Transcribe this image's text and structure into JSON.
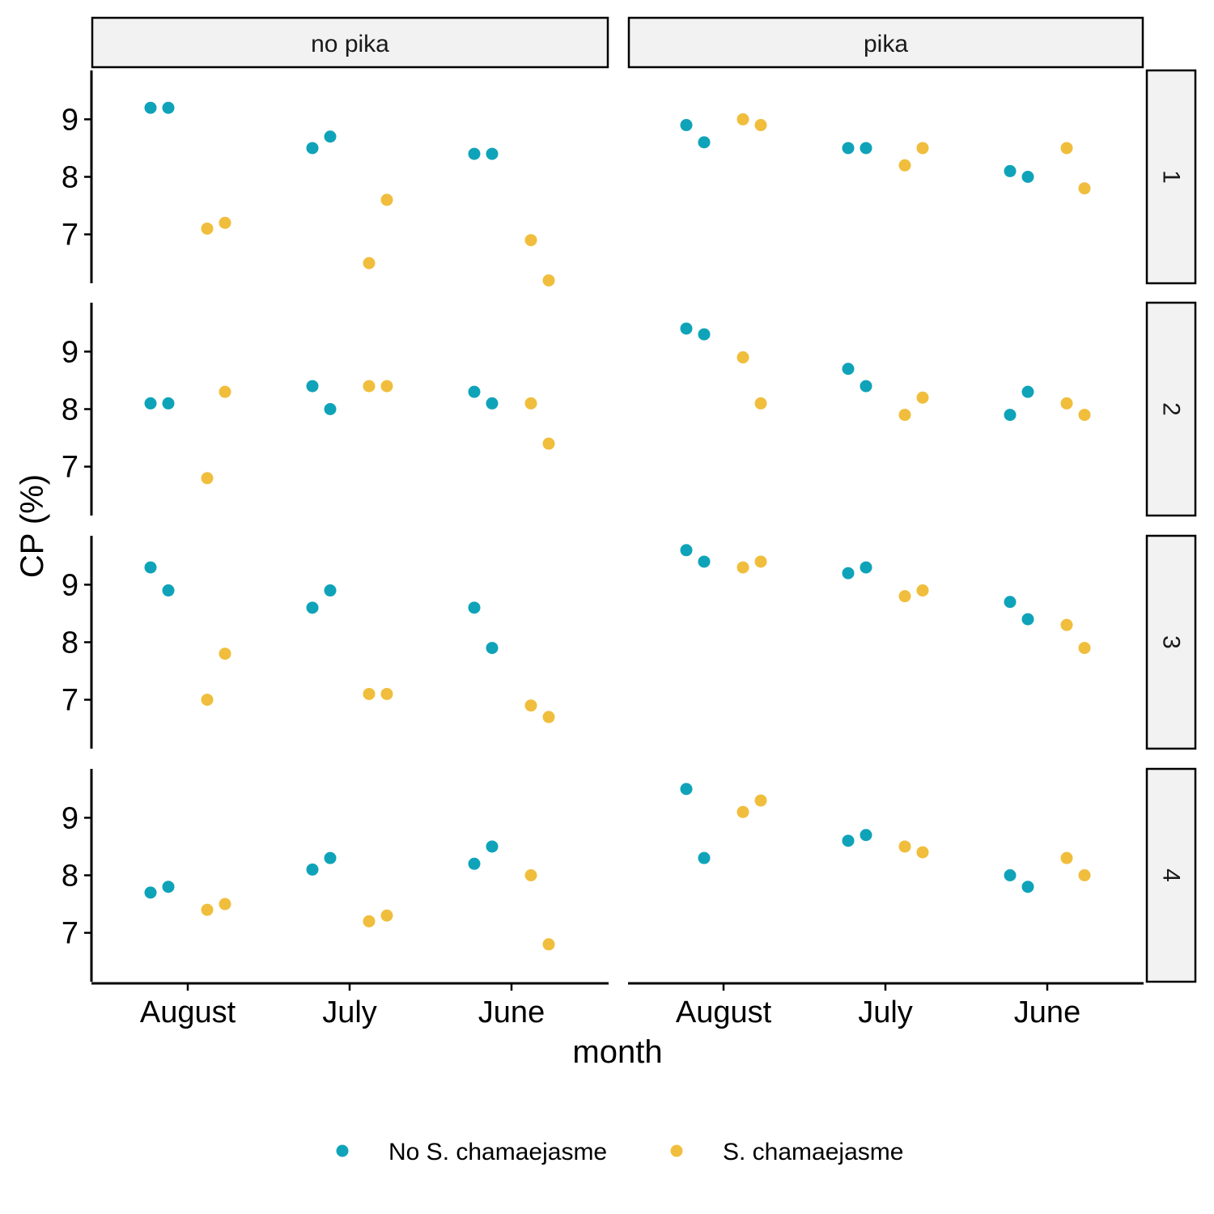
{
  "chart_data": {
    "type": "scatter",
    "xlabel": "month",
    "ylabel": "CP (%)",
    "categories": [
      "August",
      "July",
      "June"
    ],
    "yticks": [
      7,
      8,
      9
    ],
    "ylim": [
      6.15,
      9.85
    ],
    "facet_columns": [
      "no pika",
      "pika"
    ],
    "facet_rows": [
      "1",
      "2",
      "3",
      "4"
    ],
    "legend_position": "bottom",
    "grid": false,
    "series": [
      {
        "name": "No S. chamaejasme",
        "color": "#0fa3b9"
      },
      {
        "name": "S. chamaejasme",
        "color": "#f0be3c"
      }
    ],
    "points": [
      {
        "col": "no pika",
        "row": "1",
        "series": "No S. chamaejasme",
        "month": "August",
        "y": 9.2
      },
      {
        "col": "no pika",
        "row": "1",
        "series": "No S. chamaejasme",
        "month": "August",
        "y": 9.2
      },
      {
        "col": "no pika",
        "row": "1",
        "series": "No S. chamaejasme",
        "month": "July",
        "y": 8.5
      },
      {
        "col": "no pika",
        "row": "1",
        "series": "No S. chamaejasme",
        "month": "July",
        "y": 8.7
      },
      {
        "col": "no pika",
        "row": "1",
        "series": "No S. chamaejasme",
        "month": "June",
        "y": 8.4
      },
      {
        "col": "no pika",
        "row": "1",
        "series": "No S. chamaejasme",
        "month": "June",
        "y": 8.4
      },
      {
        "col": "no pika",
        "row": "1",
        "series": "S. chamaejasme",
        "month": "August",
        "y": 7.1
      },
      {
        "col": "no pika",
        "row": "1",
        "series": "S. chamaejasme",
        "month": "August",
        "y": 7.2
      },
      {
        "col": "no pika",
        "row": "1",
        "series": "S. chamaejasme",
        "month": "July",
        "y": 6.5
      },
      {
        "col": "no pika",
        "row": "1",
        "series": "S. chamaejasme",
        "month": "July",
        "y": 7.6
      },
      {
        "col": "no pika",
        "row": "1",
        "series": "S. chamaejasme",
        "month": "June",
        "y": 6.9
      },
      {
        "col": "no pika",
        "row": "1",
        "series": "S. chamaejasme",
        "month": "June",
        "y": 6.2
      },
      {
        "col": "pika",
        "row": "1",
        "series": "No S. chamaejasme",
        "month": "August",
        "y": 8.9
      },
      {
        "col": "pika",
        "row": "1",
        "series": "No S. chamaejasme",
        "month": "August",
        "y": 8.6
      },
      {
        "col": "pika",
        "row": "1",
        "series": "No S. chamaejasme",
        "month": "July",
        "y": 8.5
      },
      {
        "col": "pika",
        "row": "1",
        "series": "No S. chamaejasme",
        "month": "July",
        "y": 8.5
      },
      {
        "col": "pika",
        "row": "1",
        "series": "No S. chamaejasme",
        "month": "June",
        "y": 8.1
      },
      {
        "col": "pika",
        "row": "1",
        "series": "No S. chamaejasme",
        "month": "June",
        "y": 8.0
      },
      {
        "col": "pika",
        "row": "1",
        "series": "S. chamaejasme",
        "month": "August",
        "y": 9.0
      },
      {
        "col": "pika",
        "row": "1",
        "series": "S. chamaejasme",
        "month": "August",
        "y": 8.9
      },
      {
        "col": "pika",
        "row": "1",
        "series": "S. chamaejasme",
        "month": "July",
        "y": 8.2
      },
      {
        "col": "pika",
        "row": "1",
        "series": "S. chamaejasme",
        "month": "July",
        "y": 8.5
      },
      {
        "col": "pika",
        "row": "1",
        "series": "S. chamaejasme",
        "month": "June",
        "y": 8.5
      },
      {
        "col": "pika",
        "row": "1",
        "series": "S. chamaejasme",
        "month": "June",
        "y": 7.8
      },
      {
        "col": "no pika",
        "row": "2",
        "series": "No S. chamaejasme",
        "month": "August",
        "y": 8.1
      },
      {
        "col": "no pika",
        "row": "2",
        "series": "No S. chamaejasme",
        "month": "August",
        "y": 8.1
      },
      {
        "col": "no pika",
        "row": "2",
        "series": "No S. chamaejasme",
        "month": "July",
        "y": 8.4
      },
      {
        "col": "no pika",
        "row": "2",
        "series": "No S. chamaejasme",
        "month": "July",
        "y": 8.0
      },
      {
        "col": "no pika",
        "row": "2",
        "series": "No S. chamaejasme",
        "month": "June",
        "y": 8.3
      },
      {
        "col": "no pika",
        "row": "2",
        "series": "No S. chamaejasme",
        "month": "June",
        "y": 8.1
      },
      {
        "col": "no pika",
        "row": "2",
        "series": "S. chamaejasme",
        "month": "August",
        "y": 6.8
      },
      {
        "col": "no pika",
        "row": "2",
        "series": "S. chamaejasme",
        "month": "August",
        "y": 8.3
      },
      {
        "col": "no pika",
        "row": "2",
        "series": "S. chamaejasme",
        "month": "July",
        "y": 8.4
      },
      {
        "col": "no pika",
        "row": "2",
        "series": "S. chamaejasme",
        "month": "July",
        "y": 8.4
      },
      {
        "col": "no pika",
        "row": "2",
        "series": "S. chamaejasme",
        "month": "June",
        "y": 8.1
      },
      {
        "col": "no pika",
        "row": "2",
        "series": "S. chamaejasme",
        "month": "June",
        "y": 7.4
      },
      {
        "col": "pika",
        "row": "2",
        "series": "No S. chamaejasme",
        "month": "August",
        "y": 9.4
      },
      {
        "col": "pika",
        "row": "2",
        "series": "No S. chamaejasme",
        "month": "August",
        "y": 9.3
      },
      {
        "col": "pika",
        "row": "2",
        "series": "No S. chamaejasme",
        "month": "July",
        "y": 8.7
      },
      {
        "col": "pika",
        "row": "2",
        "series": "No S. chamaejasme",
        "month": "July",
        "y": 8.4
      },
      {
        "col": "pika",
        "row": "2",
        "series": "No S. chamaejasme",
        "month": "June",
        "y": 7.9
      },
      {
        "col": "pika",
        "row": "2",
        "series": "No S. chamaejasme",
        "month": "June",
        "y": 8.3
      },
      {
        "col": "pika",
        "row": "2",
        "series": "S. chamaejasme",
        "month": "August",
        "y": 8.9
      },
      {
        "col": "pika",
        "row": "2",
        "series": "S. chamaejasme",
        "month": "August",
        "y": 8.1
      },
      {
        "col": "pika",
        "row": "2",
        "series": "S. chamaejasme",
        "month": "July",
        "y": 7.9
      },
      {
        "col": "pika",
        "row": "2",
        "series": "S. chamaejasme",
        "month": "July",
        "y": 8.2
      },
      {
        "col": "pika",
        "row": "2",
        "series": "S. chamaejasme",
        "month": "June",
        "y": 8.1
      },
      {
        "col": "pika",
        "row": "2",
        "series": "S. chamaejasme",
        "month": "June",
        "y": 7.9
      },
      {
        "col": "no pika",
        "row": "3",
        "series": "No S. chamaejasme",
        "month": "August",
        "y": 9.3
      },
      {
        "col": "no pika",
        "row": "3",
        "series": "No S. chamaejasme",
        "month": "August",
        "y": 8.9
      },
      {
        "col": "no pika",
        "row": "3",
        "series": "No S. chamaejasme",
        "month": "July",
        "y": 8.6
      },
      {
        "col": "no pika",
        "row": "3",
        "series": "No S. chamaejasme",
        "month": "July",
        "y": 8.9
      },
      {
        "col": "no pika",
        "row": "3",
        "series": "No S. chamaejasme",
        "month": "June",
        "y": 8.6
      },
      {
        "col": "no pika",
        "row": "3",
        "series": "No S. chamaejasme",
        "month": "June",
        "y": 7.9
      },
      {
        "col": "no pika",
        "row": "3",
        "series": "S. chamaejasme",
        "month": "August",
        "y": 7.0
      },
      {
        "col": "no pika",
        "row": "3",
        "series": "S. chamaejasme",
        "month": "August",
        "y": 7.8
      },
      {
        "col": "no pika",
        "row": "3",
        "series": "S. chamaejasme",
        "month": "July",
        "y": 7.1
      },
      {
        "col": "no pika",
        "row": "3",
        "series": "S. chamaejasme",
        "month": "July",
        "y": 7.1
      },
      {
        "col": "no pika",
        "row": "3",
        "series": "S. chamaejasme",
        "month": "June",
        "y": 6.9
      },
      {
        "col": "no pika",
        "row": "3",
        "series": "S. chamaejasme",
        "month": "June",
        "y": 6.7
      },
      {
        "col": "pika",
        "row": "3",
        "series": "No S. chamaejasme",
        "month": "August",
        "y": 9.6
      },
      {
        "col": "pika",
        "row": "3",
        "series": "No S. chamaejasme",
        "month": "August",
        "y": 9.4
      },
      {
        "col": "pika",
        "row": "3",
        "series": "No S. chamaejasme",
        "month": "July",
        "y": 9.2
      },
      {
        "col": "pika",
        "row": "3",
        "series": "No S. chamaejasme",
        "month": "July",
        "y": 9.3
      },
      {
        "col": "pika",
        "row": "3",
        "series": "No S. chamaejasme",
        "month": "June",
        "y": 8.7
      },
      {
        "col": "pika",
        "row": "3",
        "series": "No S. chamaejasme",
        "month": "June",
        "y": 8.4
      },
      {
        "col": "pika",
        "row": "3",
        "series": "S. chamaejasme",
        "month": "August",
        "y": 9.3
      },
      {
        "col": "pika",
        "row": "3",
        "series": "S. chamaejasme",
        "month": "August",
        "y": 9.4
      },
      {
        "col": "pika",
        "row": "3",
        "series": "S. chamaejasme",
        "month": "July",
        "y": 8.8
      },
      {
        "col": "pika",
        "row": "3",
        "series": "S. chamaejasme",
        "month": "July",
        "y": 8.9
      },
      {
        "col": "pika",
        "row": "3",
        "series": "S. chamaejasme",
        "month": "June",
        "y": 8.3
      },
      {
        "col": "pika",
        "row": "3",
        "series": "S. chamaejasme",
        "month": "June",
        "y": 7.9
      },
      {
        "col": "no pika",
        "row": "4",
        "series": "No S. chamaejasme",
        "month": "August",
        "y": 7.7
      },
      {
        "col": "no pika",
        "row": "4",
        "series": "No S. chamaejasme",
        "month": "August",
        "y": 7.8
      },
      {
        "col": "no pika",
        "row": "4",
        "series": "No S. chamaejasme",
        "month": "July",
        "y": 8.1
      },
      {
        "col": "no pika",
        "row": "4",
        "series": "No S. chamaejasme",
        "month": "July",
        "y": 8.3
      },
      {
        "col": "no pika",
        "row": "4",
        "series": "No S. chamaejasme",
        "month": "June",
        "y": 8.2
      },
      {
        "col": "no pika",
        "row": "4",
        "series": "No S. chamaejasme",
        "month": "June",
        "y": 8.5
      },
      {
        "col": "no pika",
        "row": "4",
        "series": "S. chamaejasme",
        "month": "August",
        "y": 7.4
      },
      {
        "col": "no pika",
        "row": "4",
        "series": "S. chamaejasme",
        "month": "August",
        "y": 7.5
      },
      {
        "col": "no pika",
        "row": "4",
        "series": "S. chamaejasme",
        "month": "July",
        "y": 7.2
      },
      {
        "col": "no pika",
        "row": "4",
        "series": "S. chamaejasme",
        "month": "July",
        "y": 7.3
      },
      {
        "col": "no pika",
        "row": "4",
        "series": "S. chamaejasme",
        "month": "June",
        "y": 8.0
      },
      {
        "col": "no pika",
        "row": "4",
        "series": "S. chamaejasme",
        "month": "June",
        "y": 6.8
      },
      {
        "col": "pika",
        "row": "4",
        "series": "No S. chamaejasme",
        "month": "August",
        "y": 9.5
      },
      {
        "col": "pika",
        "row": "4",
        "series": "No S. chamaejasme",
        "month": "August",
        "y": 8.3
      },
      {
        "col": "pika",
        "row": "4",
        "series": "No S. chamaejasme",
        "month": "July",
        "y": 8.6
      },
      {
        "col": "pika",
        "row": "4",
        "series": "No S. chamaejasme",
        "month": "July",
        "y": 8.7
      },
      {
        "col": "pika",
        "row": "4",
        "series": "No S. chamaejasme",
        "month": "June",
        "y": 8.0
      },
      {
        "col": "pika",
        "row": "4",
        "series": "No S. chamaejasme",
        "month": "June",
        "y": 7.8
      },
      {
        "col": "pika",
        "row": "4",
        "series": "S. chamaejasme",
        "month": "August",
        "y": 9.1
      },
      {
        "col": "pika",
        "row": "4",
        "series": "S. chamaejasme",
        "month": "August",
        "y": 9.3
      },
      {
        "col": "pika",
        "row": "4",
        "series": "S. chamaejasme",
        "month": "July",
        "y": 8.5
      },
      {
        "col": "pika",
        "row": "4",
        "series": "S. chamaejasme",
        "month": "July",
        "y": 8.4
      },
      {
        "col": "pika",
        "row": "4",
        "series": "S. chamaejasme",
        "month": "June",
        "y": 8.3
      },
      {
        "col": "pika",
        "row": "4",
        "series": "S. chamaejasme",
        "month": "June",
        "y": 8.0
      }
    ]
  }
}
